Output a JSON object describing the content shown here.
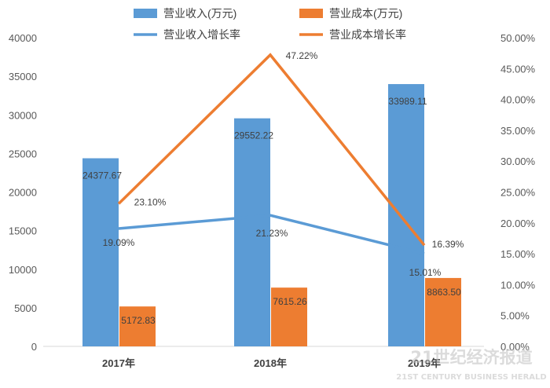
{
  "chart_data": {
    "type": "bar",
    "categories": [
      "2017年",
      "2018年",
      "2019年"
    ],
    "bar_series": [
      {
        "name": "营业收入(万元)",
        "values": [
          24377.67,
          29552.22,
          33989.11
        ],
        "labels": [
          "24377.67",
          "29552.22",
          "33989.11"
        ],
        "color": "#5b9bd5"
      },
      {
        "name": "营业成本(万元)",
        "values": [
          5172.83,
          7615.26,
          8863.5
        ],
        "labels": [
          "5172.83",
          "7615.26",
          "8863.50"
        ],
        "color": "#ed7d31"
      }
    ],
    "line_series": [
      {
        "name": "营业收入增长率",
        "values": [
          19.09,
          21.23,
          15.01
        ],
        "labels": [
          "19.09%",
          "21.23%",
          "15.01%"
        ],
        "color": "#5b9bd5",
        "axis": "right"
      },
      {
        "name": "营业成本增长率",
        "values": [
          23.1,
          47.22,
          16.39
        ],
        "labels": [
          "23.10%",
          "47.22%",
          "16.39%"
        ],
        "color": "#ed7d31",
        "axis": "right"
      }
    ],
    "left_axis": {
      "ylim": [
        0,
        40000
      ],
      "ticks": [
        "0",
        "5000",
        "10000",
        "15000",
        "20000",
        "25000",
        "30000",
        "35000",
        "40000"
      ]
    },
    "right_axis": {
      "ylim": [
        0,
        50
      ],
      "ticks": [
        "0.00%",
        "5.00%",
        "10.00%",
        "15.00%",
        "20.00%",
        "25.00%",
        "30.00%",
        "35.00%",
        "40.00%",
        "45.00%",
        "50.00%"
      ]
    },
    "grid": false,
    "legend_position": "top"
  },
  "watermark": {
    "cn": "21世纪经济报道",
    "en": "21ST CENTURY BUSINESS HERALD"
  }
}
